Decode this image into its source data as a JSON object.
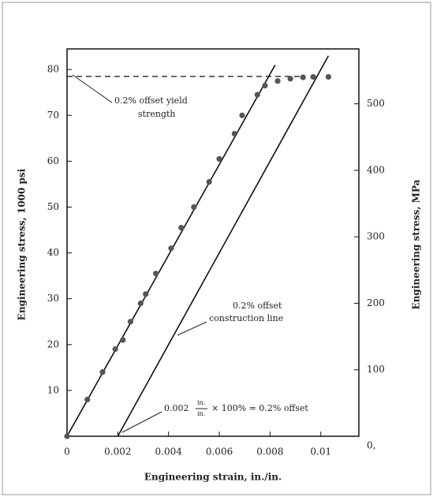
{
  "chart_data": {
    "type": "scatter",
    "x_label": "Engineering strain, in./in.",
    "y_label": "Engineering stress, 1000 psi",
    "y2_label": "Engineering stress, MPa",
    "x": [
      0,
      0.0008,
      0.0014,
      0.0019,
      0.0022,
      0.0025,
      0.0029,
      0.0031,
      0.0035,
      0.0041,
      0.0045,
      0.005,
      0.0056,
      0.006,
      0.0066,
      0.0069,
      0.0075,
      0.0078,
      0.0083,
      0.0088,
      0.0093,
      0.0097,
      0.0103
    ],
    "values": [
      0,
      8,
      14,
      19,
      21,
      25,
      29,
      31,
      35.5,
      41,
      45.5,
      50,
      55.5,
      60.5,
      66,
      70,
      74.5,
      76.5,
      77.5,
      78,
      78.3,
      78.4,
      78.4
    ],
    "color": "#555555",
    "elastic_line": {
      "x": [
        0,
        0.0082
      ],
      "values": [
        0,
        81
      ]
    },
    "offset_line": {
      "x": [
        0.002,
        0.0103
      ],
      "values": [
        0,
        83
      ]
    },
    "yield_line": {
      "x": [
        0,
        0.0093
      ],
      "values": [
        78.5,
        78.5
      ]
    },
    "xlim": [
      0,
      0.0115
    ],
    "xticks": [
      0,
      0.002,
      0.004,
      0.006,
      0.008,
      0.01
    ],
    "ylim": [
      0,
      84.5
    ],
    "yticks": [
      10,
      20,
      30,
      40,
      50,
      60,
      70,
      80
    ],
    "y2lim": [
      0,
      582.6
    ],
    "y2ticks": [
      {
        "value": 0,
        "label": "0,"
      },
      100,
      200,
      300,
      400,
      500
    ],
    "annotations": {
      "yield": [
        "0.2% offset yield",
        "strength"
      ],
      "construction": [
        "0.2% offset",
        "construction line"
      ],
      "offset": {
        "lead": "0.002",
        "num": "in.",
        "den": "in.",
        "tail": "× 100% = 0.2% offset"
      }
    }
  }
}
